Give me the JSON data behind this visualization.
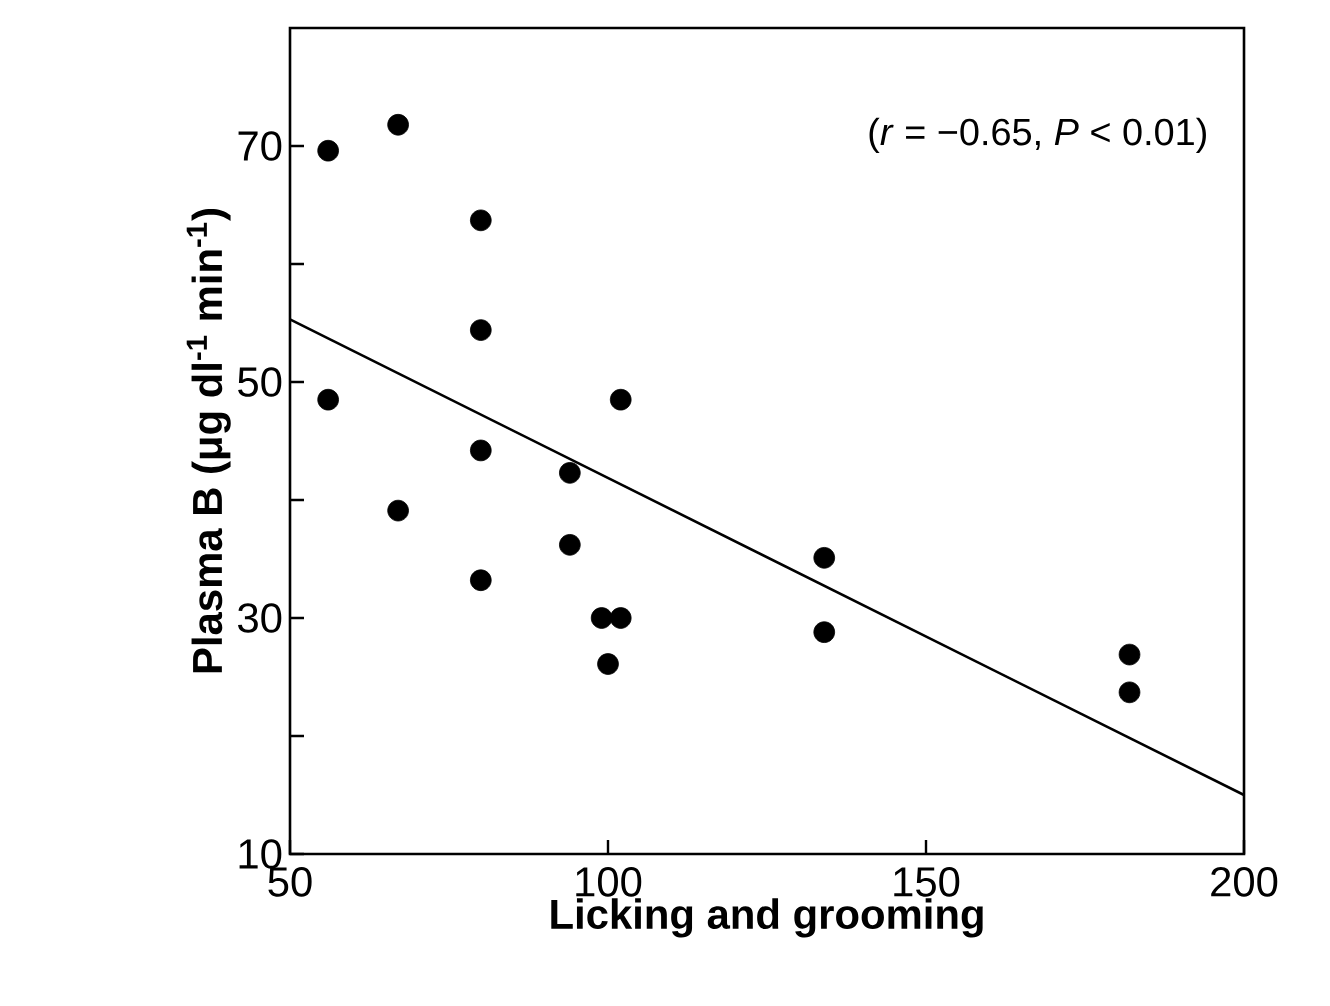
{
  "chart_data": {
    "type": "scatter",
    "xlabel": "Licking and grooming",
    "ylabel": "Plasma B (μg dl$^{-1}$ min$^{-1}$)",
    "annotations": [
      "(*r* = −0.65, *P* < 0.01)"
    ],
    "xlim": [
      50,
      200
    ],
    "ylim": [
      10,
      80
    ],
    "xticks": [
      50,
      100,
      150,
      200
    ],
    "yticks": [
      10,
      {
        "value": 20,
        "label": null
      },
      30,
      {
        "value": 40,
        "label": null
      },
      50,
      {
        "value": 60,
        "label": null
      },
      70
    ],
    "grid": false,
    "series": [
      {
        "marker": "circle",
        "color": "#000000",
        "x": [
          56,
          67,
          80,
          80,
          56,
          102,
          80,
          94,
          67,
          94,
          80,
          99,
          102,
          100,
          134,
          134,
          182,
          182
        ],
        "values": [
          69.6,
          71.8,
          63.7,
          54.4,
          48.5,
          48.5,
          44.2,
          42.3,
          39.1,
          36.2,
          33.2,
          30,
          30,
          26.1,
          35.1,
          28.8,
          26.9,
          23.7
        ]
      },
      {
        "type": "line",
        "marker": "none",
        "color": "#000000",
        "x": [
          50,
          200
        ],
        "values": [
          55.3,
          15.0
        ]
      }
    ]
  }
}
